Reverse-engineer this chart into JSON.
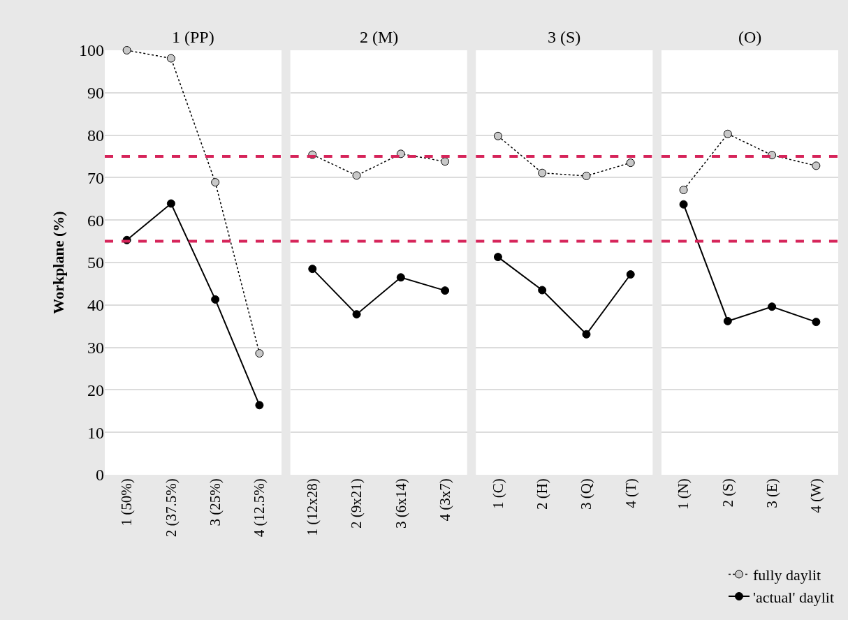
{
  "chart_data": [
    {
      "type": "line",
      "title": "1 (PP)",
      "ylabel": "Workplane (%)",
      "categories": [
        "1 (50%)",
        "2 (37.5%)",
        "3 (25%)",
        "4 (12.5%)"
      ],
      "series": [
        {
          "name": "fully daylit",
          "color": "#c8c8c8",
          "line_style": "dotted",
          "marker": "circle",
          "values": [
            100,
            98.1,
            68.9,
            28.6
          ]
        },
        {
          "name": "'actual' daylit",
          "color": "#000000",
          "line_style": "solid",
          "marker": "circle",
          "values": [
            55.3,
            63.9,
            41.3,
            16.4
          ]
        }
      ],
      "ylim": [
        0,
        100
      ],
      "yticks": [
        0,
        10,
        20,
        30,
        40,
        50,
        60,
        70,
        80,
        90,
        100
      ],
      "grid": "y",
      "legend": "bottom right",
      "ref_lines": [
        {
          "axis": "y",
          "value": 75,
          "color": "#d6245a",
          "line_style": "dashed"
        },
        {
          "axis": "y",
          "value": 55,
          "color": "#d6245a",
          "line_style": "dashed"
        }
      ]
    },
    {
      "type": "line",
      "title": "2 (M)",
      "categories": [
        "1 (12x28)",
        "2 (9x21)",
        "3 (6x14)",
        "4 (3x7)"
      ],
      "series": [
        {
          "color": "#c8c8c8",
          "line_style": "dotted",
          "marker": "circle",
          "values": [
            75.4,
            70.5,
            75.6,
            73.8
          ]
        },
        {
          "color": "#000000",
          "line_style": "solid",
          "marker": "circle",
          "values": [
            48.5,
            37.8,
            46.5,
            43.4
          ]
        }
      ],
      "ylim": [
        0,
        100
      ],
      "yticks": [
        0,
        10,
        20,
        30,
        40,
        50,
        60,
        70,
        80,
        90,
        100
      ],
      "grid": "y",
      "tick_labels": "x",
      "ref_lines": [
        {
          "axis": "y",
          "value": 75,
          "color": "#d6245a",
          "line_style": "dashed"
        },
        {
          "axis": "y",
          "value": 55,
          "color": "#d6245a",
          "line_style": "dashed"
        }
      ]
    },
    {
      "type": "line",
      "title": "3 (S)",
      "categories": [
        "1 (C)",
        "2 (H)",
        "3 (Q)",
        "4 (T)"
      ],
      "series": [
        {
          "color": "#c8c8c8",
          "line_style": "dotted",
          "marker": "circle",
          "values": [
            79.8,
            71.1,
            70.4,
            73.5
          ]
        },
        {
          "color": "#000000",
          "line_style": "solid",
          "marker": "circle",
          "values": [
            51.3,
            43.5,
            33.1,
            47.2
          ]
        }
      ],
      "ylim": [
        0,
        100
      ],
      "yticks": [
        0,
        10,
        20,
        30,
        40,
        50,
        60,
        70,
        80,
        90,
        100
      ],
      "grid": "y",
      "tick_labels": "x",
      "ref_lines": [
        {
          "axis": "y",
          "value": 75,
          "color": "#d6245a",
          "line_style": "dashed"
        },
        {
          "axis": "y",
          "value": 55,
          "color": "#d6245a",
          "line_style": "dashed"
        }
      ]
    },
    {
      "type": "line",
      "title": "(O)",
      "categories": [
        "1 (N)",
        "2 (S)",
        "3 (E)",
        "4 (W)"
      ],
      "series": [
        {
          "color": "#c8c8c8",
          "line_style": "dotted",
          "marker": "circle",
          "values": [
            67.1,
            80.3,
            75.3,
            72.8
          ]
        },
        {
          "color": "#000000",
          "line_style": "solid",
          "marker": "circle",
          "values": [
            63.7,
            36.2,
            39.6,
            36.0
          ]
        }
      ],
      "ylim": [
        0,
        100
      ],
      "yticks": [
        0,
        10,
        20,
        30,
        40,
        50,
        60,
        70,
        80,
        90,
        100
      ],
      "grid": "y",
      "tick_labels": "x",
      "ref_lines": [
        {
          "axis": "y",
          "value": 75,
          "color": "#d6245a",
          "line_style": "dashed"
        },
        {
          "axis": "y",
          "value": 55,
          "color": "#d6245a",
          "line_style": "dashed"
        }
      ]
    }
  ]
}
